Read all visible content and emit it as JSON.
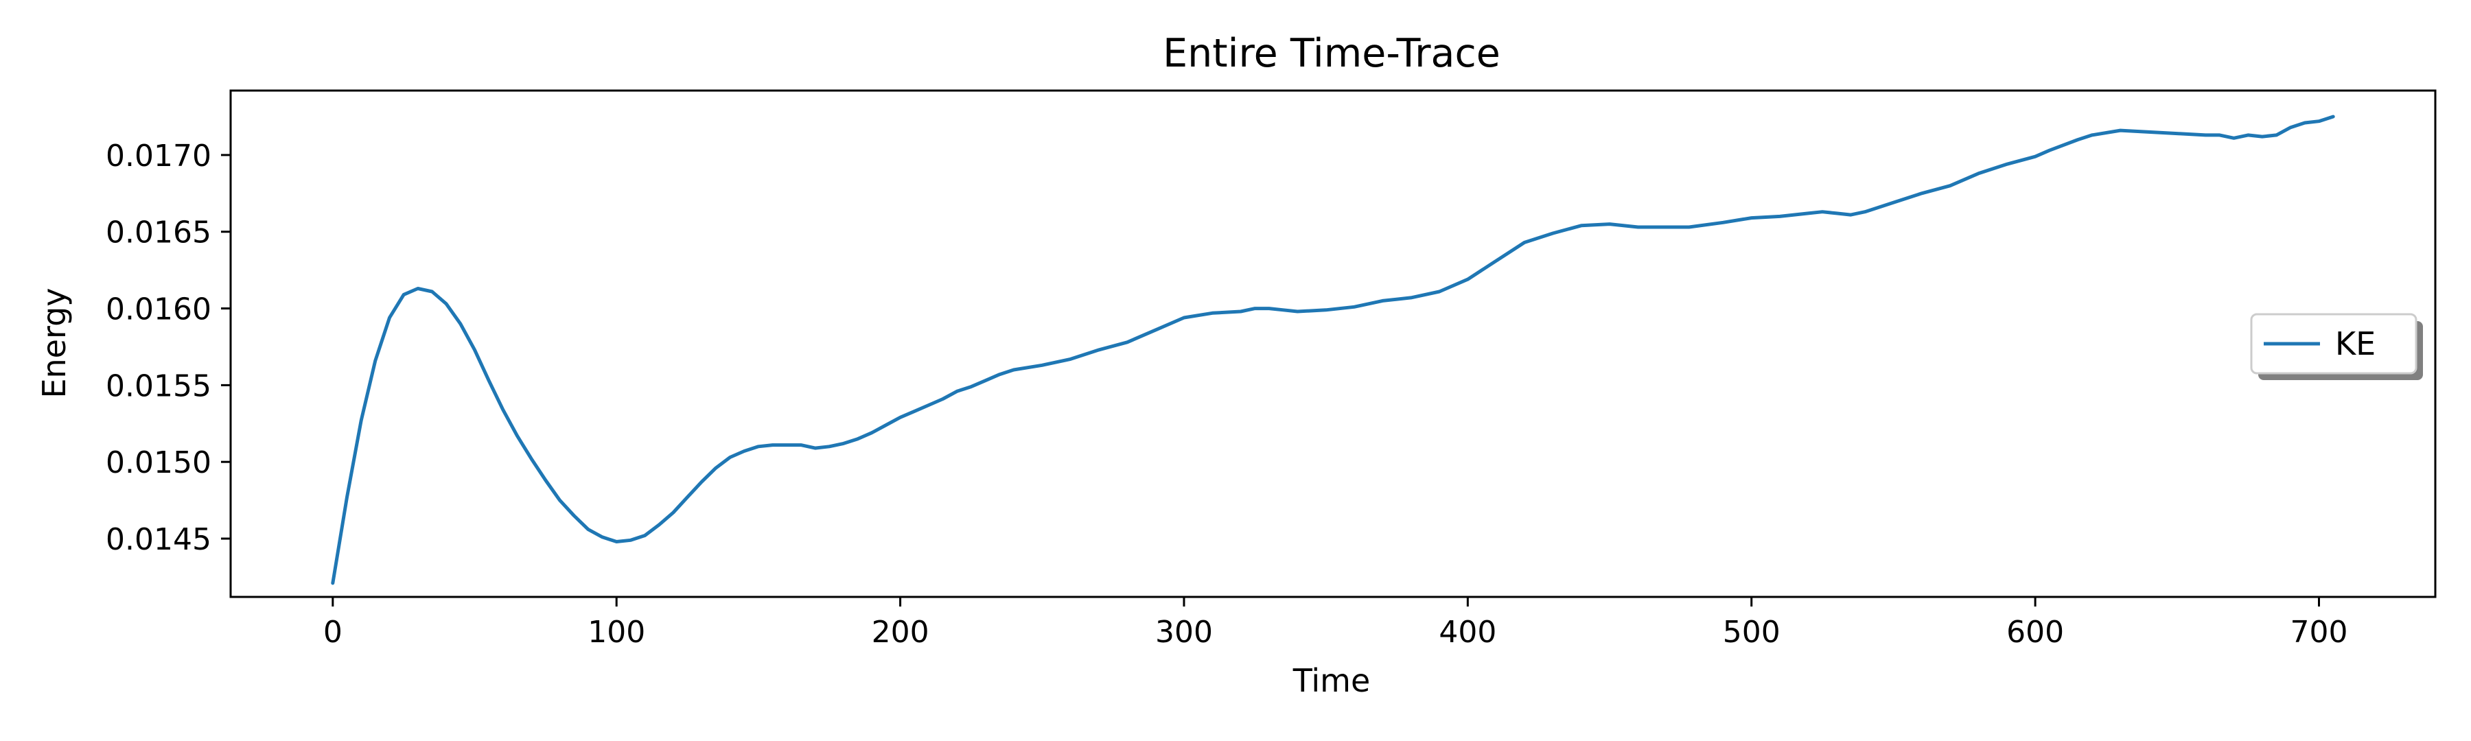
{
  "chart_data": {
    "type": "line",
    "title": "Entire Time-Trace",
    "xlabel": "Time",
    "ylabel": "Energy",
    "xlim": [
      -36,
      741
    ],
    "ylim": [
      0.01412,
      0.01742
    ],
    "xticks": [
      0,
      100,
      200,
      300,
      400,
      500,
      600,
      700
    ],
    "xtick_labels": [
      "0",
      "100",
      "200",
      "300",
      "400",
      "500",
      "600",
      "700"
    ],
    "yticks": [
      0.0145,
      0.015,
      0.0155,
      0.016,
      0.0165,
      0.017
    ],
    "ytick_labels": [
      "0.0145",
      "0.0150",
      "0.0155",
      "0.0160",
      "0.0165",
      "0.0170"
    ],
    "grid": false,
    "legend_position": "center-right",
    "series": [
      {
        "name": "KE",
        "color": "#1f77b4",
        "x": [
          0,
          5,
          10,
          15,
          20,
          25,
          30,
          35,
          40,
          45,
          50,
          55,
          60,
          65,
          70,
          75,
          80,
          85,
          90,
          95,
          100,
          105,
          110,
          115,
          120,
          125,
          130,
          135,
          140,
          145,
          150,
          155,
          160,
          165,
          170,
          175,
          180,
          185,
          190,
          195,
          200,
          205,
          210,
          215,
          220,
          225,
          230,
          235,
          240,
          250,
          260,
          270,
          280,
          290,
          300,
          310,
          320,
          325,
          330,
          335,
          340,
          350,
          360,
          370,
          380,
          390,
          400,
          410,
          420,
          430,
          440,
          450,
          460,
          470,
          478,
          490,
          500,
          510,
          520,
          525,
          530,
          535,
          540,
          550,
          560,
          570,
          580,
          590,
          600,
          605,
          615,
          620,
          630,
          640,
          650,
          660,
          665,
          670,
          675,
          680,
          685,
          690,
          695,
          700,
          705
        ],
        "y": [
          0.01421,
          0.01477,
          0.01527,
          0.01566,
          0.01594,
          0.01609,
          0.01613,
          0.01611,
          0.01603,
          0.0159,
          0.01573,
          0.01553,
          0.01534,
          0.01517,
          0.01502,
          0.01488,
          0.01475,
          0.01465,
          0.01456,
          0.01451,
          0.01448,
          0.01449,
          0.01452,
          0.01459,
          0.01467,
          0.01477,
          0.01487,
          0.01496,
          0.01503,
          0.01507,
          0.0151,
          0.01511,
          0.01511,
          0.01511,
          0.01509,
          0.0151,
          0.01512,
          0.01515,
          0.01519,
          0.01524,
          0.01529,
          0.01533,
          0.01537,
          0.01541,
          0.01546,
          0.01549,
          0.01553,
          0.01557,
          0.0156,
          0.01563,
          0.01567,
          0.01573,
          0.01578,
          0.01586,
          0.01594,
          0.01597,
          0.01598,
          0.016,
          0.016,
          0.01599,
          0.01598,
          0.01599,
          0.01601,
          0.01605,
          0.01607,
          0.01611,
          0.01619,
          0.01631,
          0.01643,
          0.01649,
          0.01654,
          0.01655,
          0.01653,
          0.01653,
          0.01653,
          0.01656,
          0.01659,
          0.0166,
          0.01662,
          0.01663,
          0.01662,
          0.01661,
          0.01663,
          0.01669,
          0.01675,
          0.0168,
          0.01688,
          0.01694,
          0.01699,
          0.01703,
          0.0171,
          0.01713,
          0.01716,
          0.01715,
          0.01714,
          0.01713,
          0.01713,
          0.01711,
          0.01713,
          0.01712,
          0.01713,
          0.01718,
          0.01721,
          0.01722,
          0.01725
        ]
      }
    ]
  }
}
